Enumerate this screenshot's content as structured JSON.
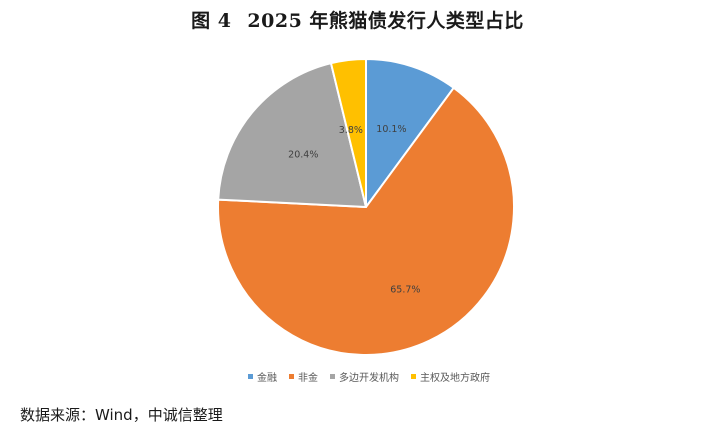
{
  "figure": {
    "label": "图 4",
    "title": "2025 年熊猫债发行人类型占比"
  },
  "source_note": "数据来源：Wind，中诚信整理",
  "chart_data": {
    "type": "pie",
    "title": "2025 年熊猫债发行人类型占比",
    "categories": [
      "金融",
      "非金",
      "多边开发机构",
      "主权及地方政府"
    ],
    "values": [
      10.1,
      65.7,
      20.4,
      3.8
    ],
    "labels": [
      "10.1%",
      "65.7%",
      "20.4%",
      "3.8%"
    ],
    "colors": [
      "#5B9BD5",
      "#ED7D31",
      "#A5A5A5",
      "#FFC000"
    ],
    "legend": "bottom",
    "start_angle": "12 o'clock",
    "direction": "clockwise"
  }
}
